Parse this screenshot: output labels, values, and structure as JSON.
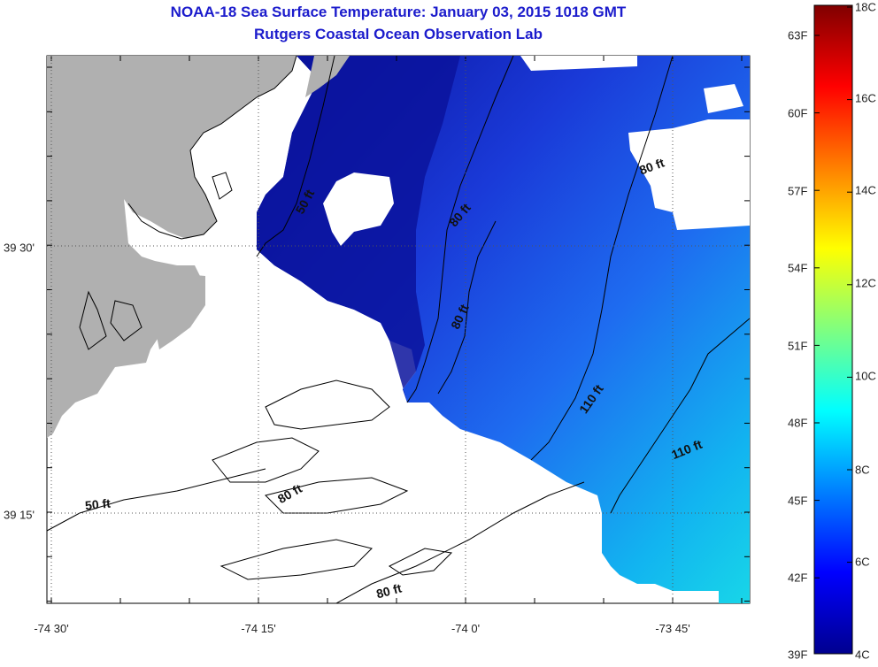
{
  "title": "NOAA-18 Sea Surface Temperature:  January 03, 2015 1018 GMT",
  "subtitle": "Rutgers Coastal Ocean Observation Lab",
  "x_ticks": [
    "-74 30'",
    "-74 15'",
    "-74 0'",
    "-73 45'"
  ],
  "y_ticks": [
    "39 30'",
    "39 15'"
  ],
  "colorbar": {
    "left_labels": [
      "63F",
      "60F",
      "57F",
      "54F",
      "51F",
      "48F",
      "45F",
      "42F",
      "39F"
    ],
    "right_labels": [
      "18C",
      "16C",
      "14C",
      "12C",
      "10C",
      "8C",
      "6C",
      "4C"
    ]
  },
  "contour_labels": [
    "50 ft",
    "80 ft",
    "80 ft",
    "80 ft",
    "110 ft",
    "110 ft",
    "50 ft",
    "80 ft",
    "80 ft"
  ],
  "colors": {
    "title": "#1c1ccc",
    "land": "#b0b0b0",
    "cloud": "#ffffff"
  }
}
